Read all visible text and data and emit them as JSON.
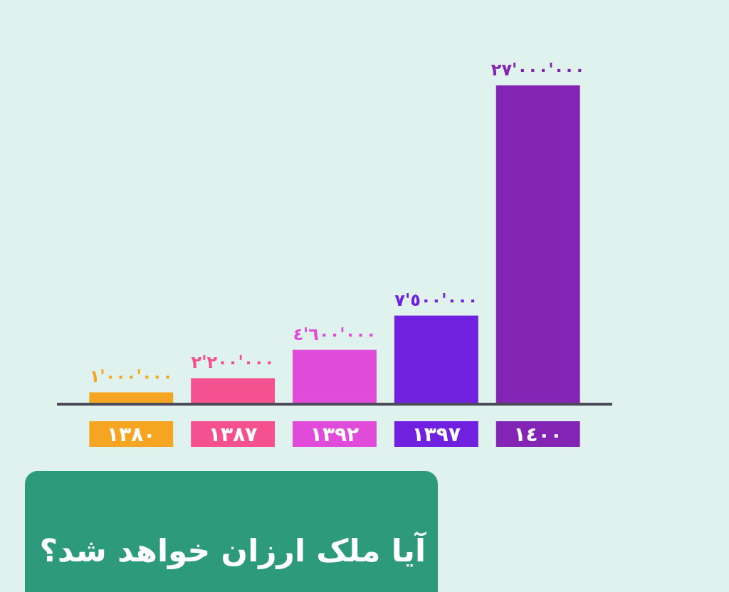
{
  "chart_data": {
    "type": "bar",
    "title": "آیا ملک ارزان خواهد شد؟",
    "categories": [
      "١٣٨٠",
      "١٣٨٧",
      "١٣٩٢",
      "١٣٩٧",
      "١٤٠٠"
    ],
    "values": [
      1000000,
      2200000,
      4600000,
      7500000,
      27000000
    ],
    "colors": [
      "#f6a523",
      "#f5508f",
      "#e04bda",
      "#7020df",
      "#8424b4"
    ],
    "value_labels": [
      "١'٠٠٠'٠٠٠",
      "٢'٢٠٠'٠٠٠",
      "٤'٦٠٠'٠٠٠",
      "٧'٥٠٠'٠٠٠",
      "٢٧'٠٠٠'٠٠٠"
    ]
  }
}
